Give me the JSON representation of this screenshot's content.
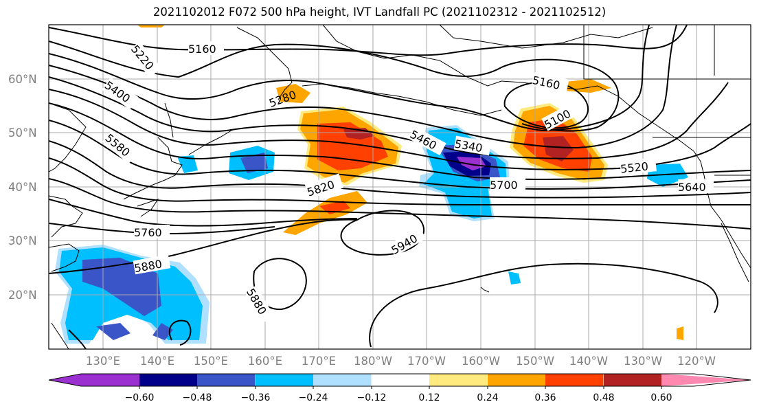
{
  "title": "2021102012 F072 500 hPa height, IVT Landfall PC (2021102312 - 2021102512)",
  "lat_labels": [
    "60°N",
    "50°N",
    "40°N",
    "30°N",
    "20°N"
  ],
  "lon_labels": [
    "130°E",
    "140°E",
    "150°E",
    "160°E",
    "170°E",
    "180°W",
    "170°W",
    "160°W",
    "150°W",
    "140°W",
    "130°W",
    "120°W"
  ],
  "colorbar": {
    "tick_labels": [
      "−0.60",
      "−0.48",
      "−0.36",
      "−0.24",
      "−0.12",
      "0.12",
      "0.24",
      "0.36",
      "0.48",
      "0.60"
    ],
    "colors": [
      "#9b30d0",
      "#00008b",
      "#3a55c8",
      "#00bfff",
      "#b0e0ff",
      "#ffffff",
      "#ffea80",
      "#ffa500",
      "#ff4000",
      "#b22222",
      "#ff88b0"
    ]
  },
  "contour_labels": [
    "5160",
    "5220",
    "5400",
    "5580",
    "5280",
    "5820",
    "5760",
    "5880",
    "5460",
    "5340",
    "5700",
    "5160",
    "5100",
    "5520",
    "5640",
    "5940",
    "5880"
  ],
  "colors": {
    "grid": "#a9a9a9",
    "contour": "#000000",
    "coast": "#000000"
  }
}
